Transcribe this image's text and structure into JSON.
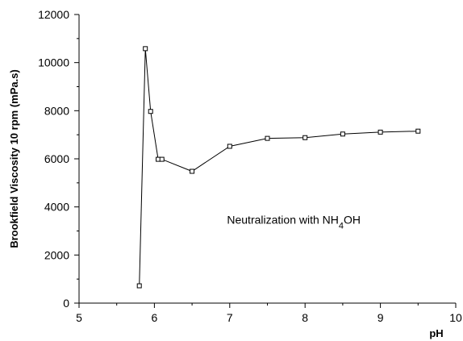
{
  "chart_data": {
    "type": "line",
    "xlabel": "pH",
    "ylabel": "Brookfield Viscosity 10 rpm (mPa.s)",
    "xlim": [
      5,
      10
    ],
    "ylim": [
      0,
      12000
    ],
    "x_ticks": [
      "5",
      "6",
      "7",
      "8",
      "9",
      "10"
    ],
    "y_ticks": [
      "0",
      "2000",
      "4000",
      "6000",
      "8000",
      "10000",
      "12000"
    ],
    "grid": false,
    "annotation": {
      "prefix": "Neutralization with NH",
      "subscript": "4",
      "suffix": "OH",
      "x": 7.85,
      "y": 3300
    },
    "series": [
      {
        "x": [
          5.8,
          5.88,
          5.95,
          6.05,
          6.1,
          6.5,
          7.0,
          7.5,
          8.0,
          8.5,
          9.0,
          9.5
        ],
        "y": [
          720,
          10580,
          7970,
          5980,
          5980,
          5480,
          6520,
          6850,
          6880,
          7030,
          7110,
          7150
        ]
      }
    ]
  }
}
